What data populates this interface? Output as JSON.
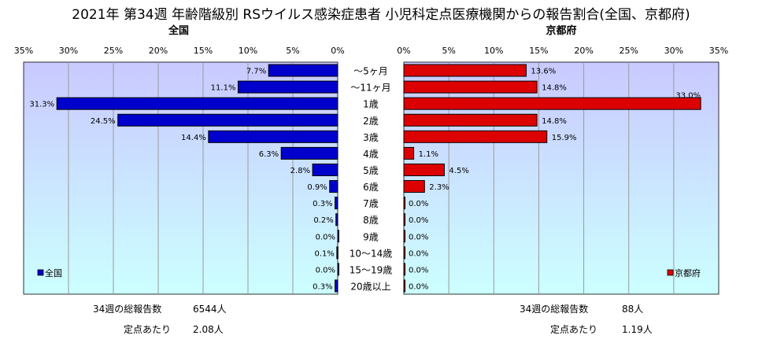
{
  "title": "2021年 第34週 年齢階級別 RSウイルス感染症患者 小児科定点医療機関からの報告割合(全国、京都府)",
  "categories": [
    "～5ヶ月",
    "～11ヶ月",
    "1歳",
    "2歳",
    "3歳",
    "4歳",
    "5歳",
    "6歳",
    "7歳",
    "8歳",
    "9歳",
    "10～14歳",
    "15～19歳",
    "20歳以上"
  ],
  "ticks": [
    0,
    5,
    10,
    15,
    20,
    25,
    30,
    35
  ],
  "tick_suffix": "%",
  "colors": {
    "national": "#0000cc",
    "kyoto": "#dd0000",
    "bg_top": "#c9c9ff",
    "bg_bottom": "#ccffff"
  },
  "chart_data": [
    {
      "type": "bar",
      "title": "全国",
      "orientation": "horizontal",
      "direction": "right-to-left",
      "categories": [
        "～5ヶ月",
        "～11ヶ月",
        "1歳",
        "2歳",
        "3歳",
        "4歳",
        "5歳",
        "6歳",
        "7歳",
        "8歳",
        "9歳",
        "10～14歳",
        "15～19歳",
        "20歳以上"
      ],
      "series": [
        {
          "name": "全国",
          "values": [
            7.7,
            11.1,
            31.3,
            24.5,
            14.4,
            6.3,
            2.8,
            0.9,
            0.3,
            0.2,
            0.0,
            0.1,
            0.0,
            0.3
          ]
        }
      ],
      "data_labels": [
        "7.7%",
        "11.1%",
        "31.3%",
        "24.5%",
        "14.4%",
        "6.3%",
        "2.8%",
        "0.9%",
        "0.3%",
        "0.2%",
        "0.0%",
        "0.1%",
        "0.0%",
        "0.3%"
      ],
      "xlim": [
        0,
        35
      ],
      "grid": true,
      "legend": "bottom-left"
    },
    {
      "type": "bar",
      "title": "京都府",
      "orientation": "horizontal",
      "direction": "left-to-right",
      "categories": [
        "～5ヶ月",
        "～11ヶ月",
        "1歳",
        "2歳",
        "3歳",
        "4歳",
        "5歳",
        "6歳",
        "7歳",
        "8歳",
        "9歳",
        "10～14歳",
        "15～19歳",
        "20歳以上"
      ],
      "series": [
        {
          "name": "京都府",
          "values": [
            13.6,
            14.8,
            33.0,
            14.8,
            15.9,
            1.1,
            4.5,
            2.3,
            0.0,
            0.0,
            0.0,
            0.0,
            0.0,
            0.0
          ]
        }
      ],
      "data_labels": [
        "13.6%",
        "14.8%",
        "33.0%",
        "14.8%",
        "15.9%",
        "1.1%",
        "4.5%",
        "2.3%",
        "0.0%",
        "0.0%",
        "0.0%",
        "0.0%",
        "0.0%",
        "0.0%"
      ],
      "xlim": [
        0,
        35
      ],
      "grid": true,
      "legend": "bottom-right"
    }
  ],
  "summary": {
    "national": {
      "total_label": "34週の総報告数",
      "total_value": "6544人",
      "per_label": "定点あたり",
      "per_value": "2.08人"
    },
    "kyoto": {
      "total_label": "34週の総報告数",
      "total_value": "88人",
      "per_label": "定点あたり",
      "per_value": "1.19人"
    }
  }
}
